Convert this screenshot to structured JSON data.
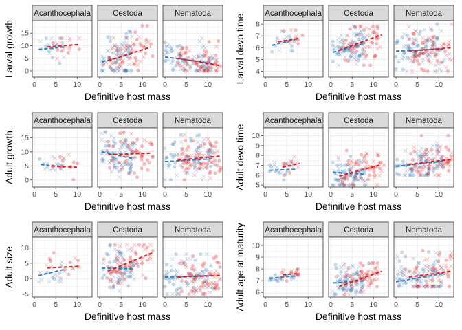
{
  "figure": {
    "panel_labels": [
      "Acanthocephala",
      "Cestoda",
      "Nematoda"
    ],
    "xlabel": "Definitive host mass"
  },
  "colors": {
    "blue": "#377EB8",
    "red": "#E41A1C",
    "panel_bg": "#FFFFFF",
    "strip_bg": "#D9D9D9",
    "grid": "#EBEBEB",
    "border": "#333333"
  },
  "chart_data": [
    {
      "type": "scatter",
      "ylabel": "Larval growth",
      "xlim": [
        -0.5,
        13.5
      ],
      "ylim": [
        -2.5,
        20
      ],
      "xticks": [
        0,
        5,
        10
      ],
      "yticks": [
        0,
        5,
        10,
        15
      ],
      "facets": [
        {
          "name": "Acanthocephala",
          "x_range": [
            1,
            10.5
          ],
          "y_range": [
            3,
            13
          ],
          "n": 35,
          "blue_trend": {
            "x": [
              1,
              7
            ],
            "y": [
              8.5,
              9.5
            ]
          },
          "red_trend": {
            "x": [
              3,
              10.5
            ],
            "y": [
              9.5,
              10.5
            ]
          }
        },
        {
          "name": "Cestoda",
          "x_range": [
            0.5,
            12.5
          ],
          "y_range": [
            0,
            18
          ],
          "n": 140,
          "blue_trend": {
            "x": [
              0.5,
              8
            ],
            "y": [
              3.5,
              7
            ]
          },
          "red_trend": {
            "x": [
              2,
              12
            ],
            "y": [
              4,
              9.5
            ]
          }
        },
        {
          "name": "Nematoda",
          "x_range": [
            0,
            13
          ],
          "y_range": [
            0,
            13
          ],
          "n": 150,
          "blue_trend": {
            "x": [
              0,
              11
            ],
            "y": [
              5.5,
              3
            ]
          },
          "red_trend": {
            "x": [
              3,
              13
            ],
            "y": [
              5,
              2
            ]
          }
        }
      ]
    },
    {
      "type": "scatter",
      "ylabel": "Larval devo time",
      "xlim": [
        -0.5,
        13.5
      ],
      "ylim": [
        3.5,
        8.3
      ],
      "xticks": [
        0,
        5,
        10
      ],
      "yticks": [
        4,
        5,
        6,
        7,
        8
      ],
      "facets": [
        {
          "name": "Acanthocephala",
          "x_range": [
            1,
            10.5
          ],
          "y_range": [
            5.5,
            7.5
          ],
          "n": 30,
          "blue_trend": {
            "x": [
              1.5,
              7
            ],
            "y": [
              6.2,
              6.7
            ]
          },
          "red_trend": {
            "x": [
              3,
              8
            ],
            "y": [
              6.5,
              6.8
            ]
          }
        },
        {
          "name": "Cestoda",
          "x_range": [
            0.5,
            12.5
          ],
          "y_range": [
            4.5,
            7.8
          ],
          "n": 140,
          "blue_trend": {
            "x": [
              0.5,
              8
            ],
            "y": [
              5.6,
              6.4
            ]
          },
          "red_trend": {
            "x": [
              2,
              12
            ],
            "y": [
              5.8,
              7.1
            ]
          }
        },
        {
          "name": "Nematoda",
          "x_range": [
            0,
            13
          ],
          "y_range": [
            4,
            8
          ],
          "n": 160,
          "blue_trend": {
            "x": [
              0,
              11
            ],
            "y": [
              5.7,
              5.9
            ]
          },
          "red_trend": {
            "x": [
              3,
              13
            ],
            "y": [
              5.7,
              6.0
            ]
          }
        }
      ]
    },
    {
      "type": "scatter",
      "ylabel": "Adult growth",
      "xlim": [
        -0.5,
        13.5
      ],
      "ylim": [
        -2.5,
        18.5
      ],
      "xticks": [
        0,
        5,
        10
      ],
      "yticks": [
        0,
        5,
        10,
        15
      ],
      "facets": [
        {
          "name": "Acanthocephala",
          "x_range": [
            1,
            10.5
          ],
          "y_range": [
            0,
            9
          ],
          "n": 30,
          "blue_trend": {
            "x": [
              1.5,
              7
            ],
            "y": [
              5.5,
              4.5
            ]
          },
          "red_trend": {
            "x": [
              4,
              10
            ],
            "y": [
              5,
              4.5
            ]
          }
        },
        {
          "name": "Cestoda",
          "x_range": [
            0.5,
            12.5
          ],
          "y_range": [
            1,
            17
          ],
          "n": 140,
          "blue_trend": {
            "x": [
              0.5,
              8
            ],
            "y": [
              10,
              7.5
            ]
          },
          "red_trend": {
            "x": [
              2,
              12
            ],
            "y": [
              9,
              9.5
            ]
          }
        },
        {
          "name": "Nematoda",
          "x_range": [
            0,
            13
          ],
          "y_range": [
            0,
            16
          ],
          "n": 150,
          "blue_trend": {
            "x": [
              0,
              11
            ],
            "y": [
              6.5,
              7.5
            ]
          },
          "red_trend": {
            "x": [
              3,
              13
            ],
            "y": [
              7,
              8.5
            ]
          }
        }
      ]
    },
    {
      "type": "scatter",
      "ylabel": "Adult devo time",
      "xlim": [
        -0.5,
        13.5
      ],
      "ylim": [
        4.8,
        10.8
      ],
      "xticks": [
        0,
        5,
        10
      ],
      "yticks": [
        5,
        6,
        7,
        8,
        9,
        10
      ],
      "facets": [
        {
          "name": "Acanthocephala",
          "x_range": [
            1,
            10.5
          ],
          "y_range": [
            5.5,
            8
          ],
          "n": 30,
          "blue_trend": {
            "x": [
              1,
              7
            ],
            "y": [
              6.5,
              6.6
            ]
          },
          "red_trend": {
            "x": [
              4,
              8
            ],
            "y": [
              6.8,
              7.2
            ]
          }
        },
        {
          "name": "Cestoda",
          "x_range": [
            0.5,
            12.5
          ],
          "y_range": [
            5,
            8.5
          ],
          "n": 140,
          "blue_trend": {
            "x": [
              0.5,
              8
            ],
            "y": [
              6.3,
              6.1
            ]
          },
          "red_trend": {
            "x": [
              2,
              12
            ],
            "y": [
              5.9,
              7.1
            ]
          }
        },
        {
          "name": "Nematoda",
          "x_range": [
            0,
            13
          ],
          "y_range": [
            6,
            10
          ],
          "n": 150,
          "blue_trend": {
            "x": [
              0,
              11
            ],
            "y": [
              6.9,
              7.4
            ]
          },
          "red_trend": {
            "x": [
              3,
              13
            ],
            "y": [
              7.1,
              7.6
            ]
          }
        }
      ]
    },
    {
      "type": "scatter",
      "ylabel": "Adult size",
      "xlim": [
        -0.5,
        13.5
      ],
      "ylim": [
        -6,
        13.5
      ],
      "xticks": [
        0,
        5,
        10
      ],
      "yticks": [
        -5,
        0,
        5,
        10
      ],
      "facets": [
        {
          "name": "Acanthocephala",
          "x_range": [
            1,
            10.5
          ],
          "y_range": [
            -1,
            9
          ],
          "n": 30,
          "blue_trend": {
            "x": [
              1,
              7
            ],
            "y": [
              1,
              3
            ]
          },
          "red_trend": {
            "x": [
              3,
              10.5
            ],
            "y": [
              3.5,
              4
            ]
          }
        },
        {
          "name": "Cestoda",
          "x_range": [
            0.5,
            12.5
          ],
          "y_range": [
            -4,
            11
          ],
          "n": 140,
          "blue_trend": {
            "x": [
              0.5,
              8
            ],
            "y": [
              3.5,
              3.2
            ]
          },
          "red_trend": {
            "x": [
              2,
              12.5
            ],
            "y": [
              2.5,
              8.5
            ]
          }
        },
        {
          "name": "Nematoda",
          "x_range": [
            0,
            13
          ],
          "y_range": [
            -5,
            8
          ],
          "n": 150,
          "blue_trend": {
            "x": [
              0,
              11
            ],
            "y": [
              0.5,
              1
            ]
          },
          "red_trend": {
            "x": [
              3,
              13
            ],
            "y": [
              0.5,
              1
            ]
          }
        }
      ]
    },
    {
      "type": "scatter",
      "ylabel": "Adult age at maturity",
      "xlim": [
        -0.5,
        13.5
      ],
      "ylim": [
        5.6,
        10.7
      ],
      "xticks": [
        0,
        5,
        10
      ],
      "yticks": [
        6,
        7,
        8,
        9,
        10
      ],
      "facets": [
        {
          "name": "Acanthocephala",
          "x_range": [
            1,
            10.5
          ],
          "y_range": [
            6.8,
            8.5
          ],
          "n": 30,
          "blue_trend": {
            "x": [
              1,
              7
            ],
            "y": [
              7.2,
              7.4
            ]
          },
          "red_trend": {
            "x": [
              4,
              8
            ],
            "y": [
              7.5,
              7.6
            ]
          }
        },
        {
          "name": "Cestoda",
          "x_range": [
            0.5,
            12.5
          ],
          "y_range": [
            5.8,
            8.5
          ],
          "n": 140,
          "blue_trend": {
            "x": [
              0.5,
              8
            ],
            "y": [
              6.8,
              7.0
            ]
          },
          "red_trend": {
            "x": [
              2,
              12
            ],
            "y": [
              6.5,
              7.8
            ]
          }
        },
        {
          "name": "Nematoda",
          "x_range": [
            0,
            13
          ],
          "y_range": [
            6.5,
            10
          ],
          "n": 150,
          "blue_trend": {
            "x": [
              0,
              11
            ],
            "y": [
              6.9,
              7.6
            ]
          },
          "red_trend": {
            "x": [
              3,
              13
            ],
            "y": [
              7.3,
              7.8
            ]
          }
        }
      ]
    }
  ]
}
